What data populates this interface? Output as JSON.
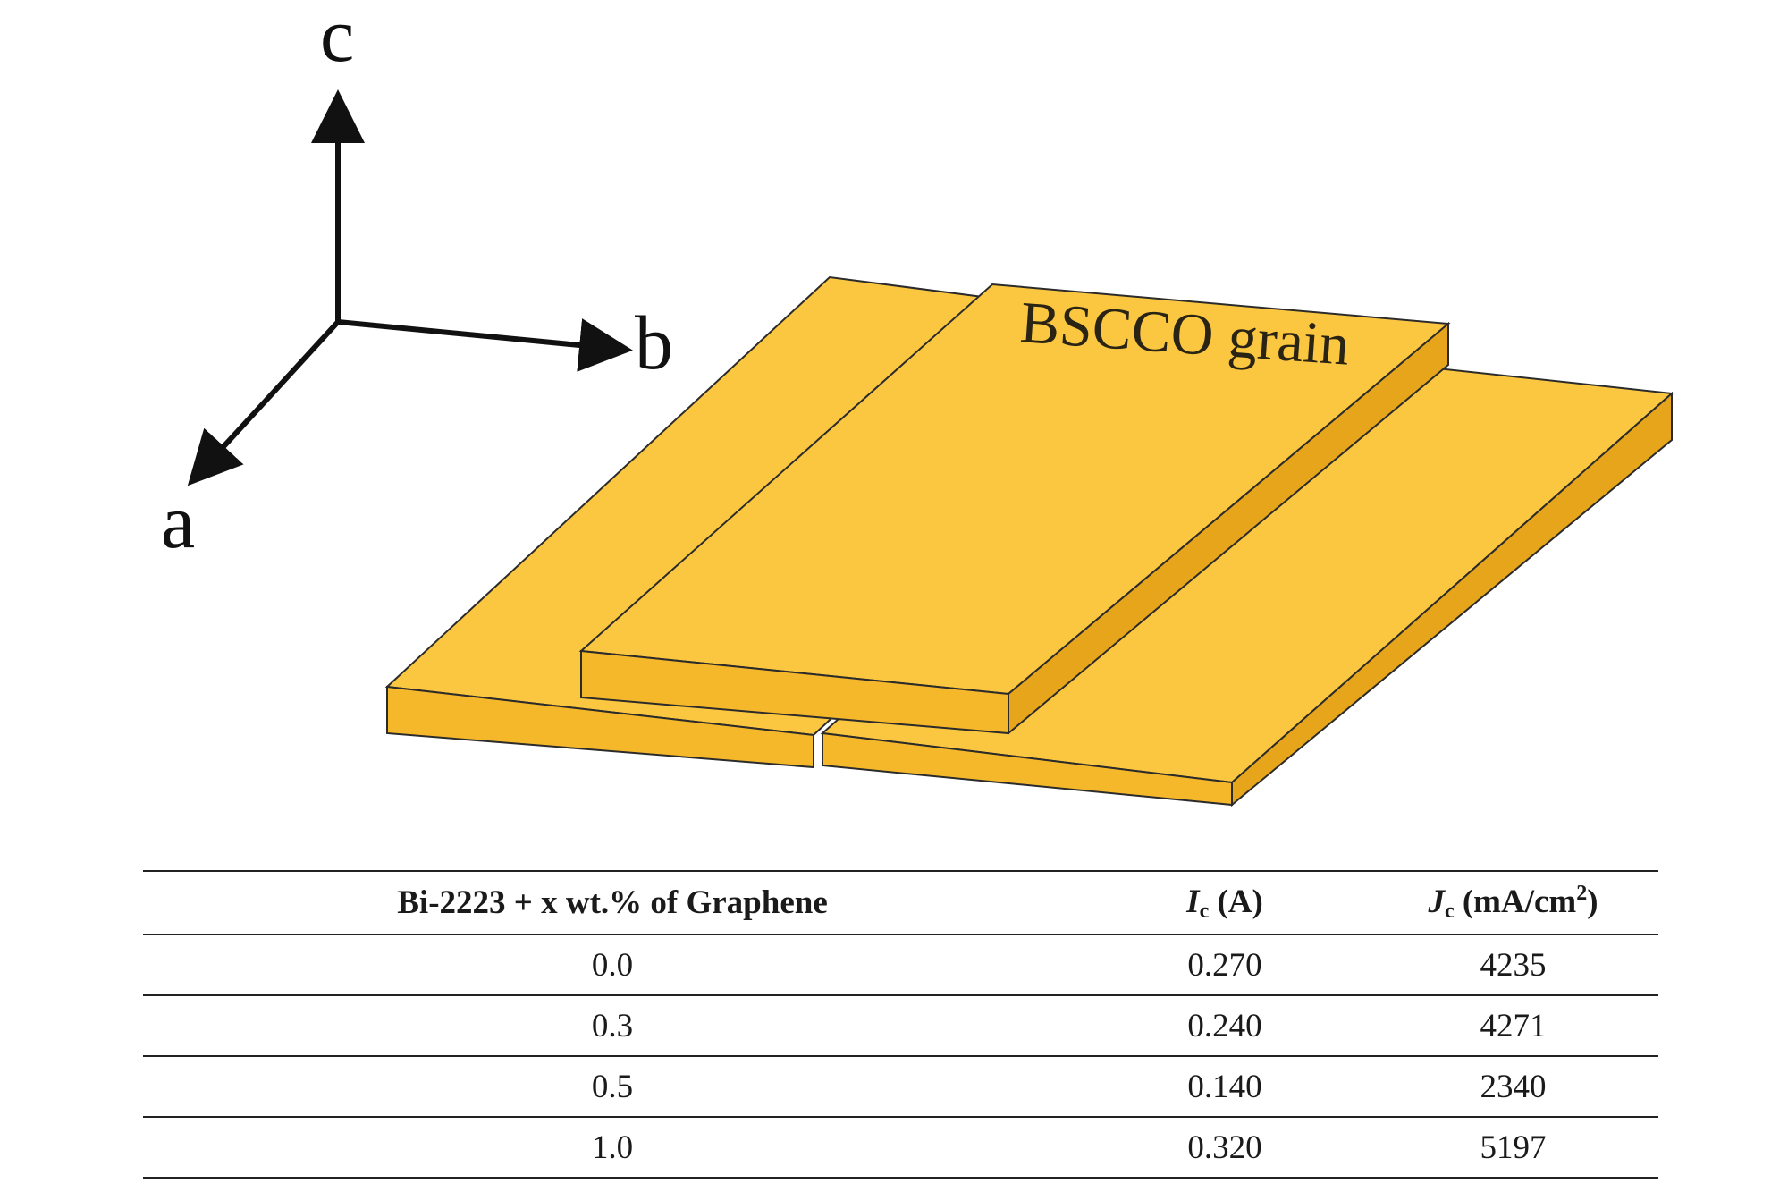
{
  "diagram": {
    "axes": {
      "c_label": "c",
      "b_label": "b",
      "a_label": "a"
    },
    "grain_label": "BSCCO grain",
    "colors": {
      "grain_top": "#fcc740",
      "grain_front": "#f5b82a",
      "grain_side": "#e6a51a",
      "outline": "#2b2b2b",
      "axis": "#111111"
    }
  },
  "table": {
    "headers": {
      "composition": "Bi-2223 + x wt.% of Graphene",
      "ic_symbol": "I",
      "ic_sub": "c",
      "ic_unit": " (A)",
      "jc_symbol": "J",
      "jc_sub": "c",
      "jc_unit_pre": " (mA/cm",
      "jc_sup": "2",
      "jc_unit_post": ")"
    },
    "rows": [
      {
        "x": "0.0",
        "ic": "0.270",
        "jc": "4235"
      },
      {
        "x": "0.3",
        "ic": "0.240",
        "jc": "4271"
      },
      {
        "x": "0.5",
        "ic": "0.140",
        "jc": "2340"
      },
      {
        "x": "1.0",
        "ic": "0.320",
        "jc": "5197"
      }
    ]
  }
}
